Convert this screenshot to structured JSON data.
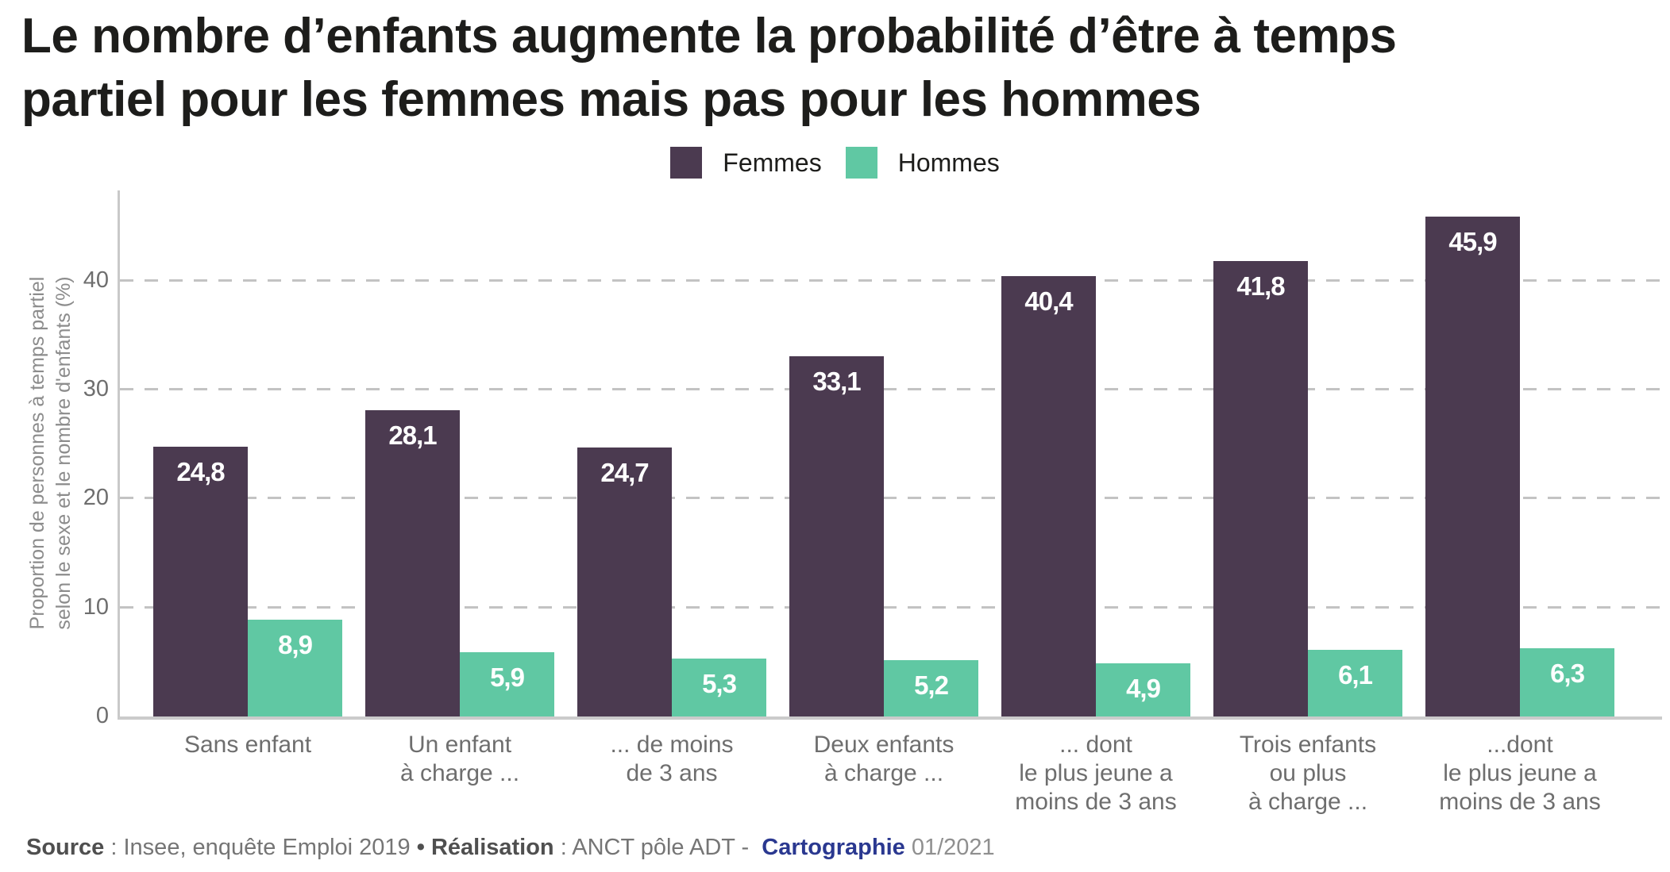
{
  "title": "Le nombre d’enfants augmente la probabilité d’être à temps\npartiel pour les femmes mais pas pour les hommes",
  "legend": {
    "items": [
      {
        "label": "Femmes",
        "color": "#4b3a50"
      },
      {
        "label": "Hommes",
        "color": "#60c8a3"
      }
    ]
  },
  "chart_data": {
    "type": "bar",
    "categories": [
      "Sans enfant",
      "Un enfant\nà charge ...",
      "... de moins\nde 3 ans",
      "Deux enfants\nà charge ...",
      "... dont\nle plus jeune a\nmoins de 3 ans",
      "Trois enfants\nou plus\nà charge ...",
      "...dont\nle plus jeune a\nmoins de 3 ans"
    ],
    "series": [
      {
        "name": "Femmes",
        "color": "#4b3a50",
        "values": [
          24.8,
          28.1,
          24.7,
          33.1,
          40.4,
          41.8,
          45.9
        ]
      },
      {
        "name": "Hommes",
        "color": "#60c8a3",
        "values": [
          8.9,
          5.9,
          5.3,
          5.2,
          4.9,
          6.1,
          6.3
        ]
      }
    ],
    "title": "",
    "xlabel": "",
    "ylabel": "Proportion de personnes à temps partiel\nselon le sexe et le nombre d'enfants (%)",
    "yticks": [
      0,
      10,
      20,
      30,
      40
    ],
    "ylim": [
      0,
      48.3
    ],
    "grid": "horizontal-dashed",
    "legend_position": "top-center",
    "value_label_format": "comma-decimal"
  },
  "footer": {
    "segments": [
      {
        "text": "Source",
        "style": "bold"
      },
      {
        "text": " : Insee, enquête Emploi 2019 ",
        "style": "normal"
      },
      {
        "text": "• ",
        "style": "bold"
      },
      {
        "text": "Réalisation",
        "style": "bold"
      },
      {
        "text": " : ANCT pôle ADT -  ",
        "style": "normal"
      },
      {
        "text": "Cartographie",
        "style": "brand"
      },
      {
        "text": " 01/2021",
        "style": "light"
      }
    ]
  }
}
